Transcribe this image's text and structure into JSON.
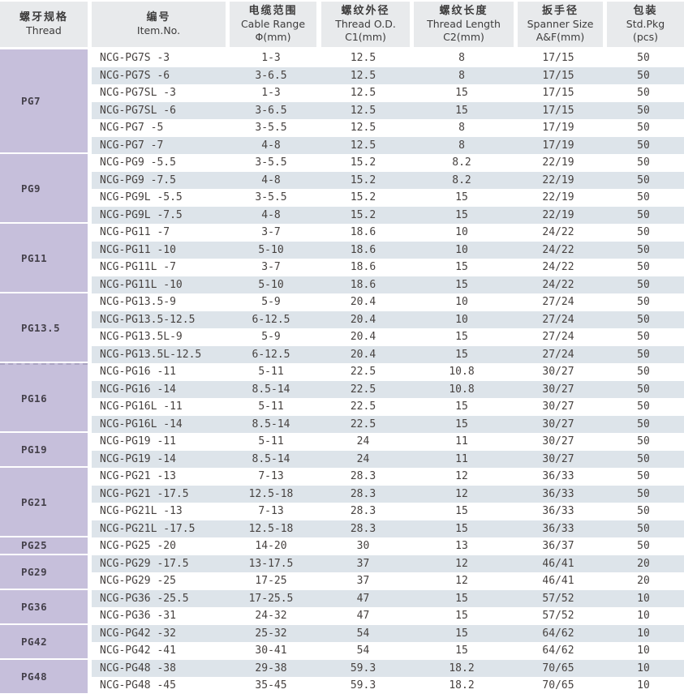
{
  "table": {
    "columns": [
      {
        "zh": "螺牙规格",
        "en": "Thread",
        "sub": ""
      },
      {
        "zh": "编号",
        "en": "Item.No.",
        "sub": ""
      },
      {
        "zh": "电缆范围",
        "en": "Cable Range",
        "sub": "Φ(mm)"
      },
      {
        "zh": "螺纹外径",
        "en": "Thread O.D.",
        "sub": "C1(mm)"
      },
      {
        "zh": "螺纹长度",
        "en": "Thread Length",
        "sub": "C2(mm)"
      },
      {
        "zh": "扳手径",
        "en": "Spanner Size",
        "sub": "A&F(mm)"
      },
      {
        "zh": "包装",
        "en": "Std.Pkg",
        "sub": "(pcs)"
      }
    ],
    "groups": [
      {
        "thread": "PG7",
        "rows": [
          [
            "NCG-PG7S -3",
            "1-3",
            "12.5",
            "8",
            "17/15",
            "50"
          ],
          [
            "NCG-PG7S -6",
            "3-6.5",
            "12.5",
            "8",
            "17/15",
            "50"
          ],
          [
            "NCG-PG7SL -3",
            "1-3",
            "12.5",
            "15",
            "17/15",
            "50"
          ],
          [
            "NCG-PG7SL -6",
            "3-6.5",
            "12.5",
            "15",
            "17/15",
            "50"
          ],
          [
            "NCG-PG7 -5",
            "3-5.5",
            "12.5",
            "8",
            "17/19",
            "50"
          ],
          [
            "NCG-PG7 -7",
            "4-8",
            "12.5",
            "8",
            "17/19",
            "50"
          ]
        ]
      },
      {
        "thread": "PG9",
        "rows": [
          [
            "NCG-PG9 -5.5",
            "3-5.5",
            "15.2",
            "8.2",
            "22/19",
            "50"
          ],
          [
            "NCG-PG9 -7.5",
            "4-8",
            "15.2",
            "8.2",
            "22/19",
            "50"
          ],
          [
            "NCG-PG9L -5.5",
            "3-5.5",
            "15.2",
            "15",
            "22/19",
            "50"
          ],
          [
            "NCG-PG9L -7.5",
            "4-8",
            "15.2",
            "15",
            "22/19",
            "50"
          ]
        ]
      },
      {
        "thread": "PG11",
        "rows": [
          [
            "NCG-PG11 -7",
            "3-7",
            "18.6",
            "10",
            "24/22",
            "50"
          ],
          [
            "NCG-PG11 -10",
            "5-10",
            "18.6",
            "10",
            "24/22",
            "50"
          ],
          [
            "NCG-PG11L -7",
            "3-7",
            "18.6",
            "15",
            "24/22",
            "50"
          ],
          [
            "NCG-PG11L -10",
            "5-10",
            "18.6",
            "15",
            "24/22",
            "50"
          ]
        ]
      },
      {
        "thread": "PG13.5",
        "rows": [
          [
            "NCG-PG13.5-9",
            "5-9",
            "20.4",
            "10",
            "27/24",
            "50"
          ],
          [
            "NCG-PG13.5-12.5",
            "6-12.5",
            "20.4",
            "10",
            "27/24",
            "50"
          ],
          [
            "NCG-PG13.5L-9",
            "5-9",
            "20.4",
            "15",
            "27/24",
            "50"
          ],
          [
            "NCG-PG13.5L-12.5",
            "6-12.5",
            "20.4",
            "15",
            "27/24",
            "50"
          ]
        ]
      },
      {
        "thread": "PG16",
        "divider_before": true,
        "rows": [
          [
            "NCG-PG16 -11",
            "5-11",
            "22.5",
            "10.8",
            "30/27",
            "50"
          ],
          [
            "NCG-PG16 -14",
            "8.5-14",
            "22.5",
            "10.8",
            "30/27",
            "50"
          ],
          [
            "NCG-PG16L -11",
            "5-11",
            "22.5",
            "15",
            "30/27",
            "50"
          ],
          [
            "NCG-PG16L -14",
            "8.5-14",
            "22.5",
            "15",
            "30/27",
            "50"
          ]
        ]
      },
      {
        "thread": "PG19",
        "rows": [
          [
            "NCG-PG19 -11",
            "5-11",
            "24",
            "11",
            "30/27",
            "50"
          ],
          [
            "NCG-PG19 -14",
            "8.5-14",
            "24",
            "11",
            "30/27",
            "50"
          ]
        ]
      },
      {
        "thread": "PG21",
        "rows": [
          [
            "NCG-PG21 -13",
            "7-13",
            "28.3",
            "12",
            "36/33",
            "50"
          ],
          [
            "NCG-PG21 -17.5",
            "12.5-18",
            "28.3",
            "12",
            "36/33",
            "50"
          ],
          [
            "NCG-PG21L -13",
            "7-13",
            "28.3",
            "15",
            "36/33",
            "50"
          ],
          [
            "NCG-PG21L -17.5",
            "12.5-18",
            "28.3",
            "15",
            "36/33",
            "50"
          ]
        ]
      },
      {
        "thread": "PG25",
        "rows": [
          [
            "NCG-PG25 -20",
            "14-20",
            "30",
            "13",
            "36/37",
            "50"
          ]
        ]
      },
      {
        "thread": "PG29",
        "rows": [
          [
            "NCG-PG29 -17.5",
            "13-17.5",
            "37",
            "12",
            "46/41",
            "20"
          ],
          [
            "NCG-PG29 -25",
            "17-25",
            "37",
            "12",
            "46/41",
            "20"
          ]
        ]
      },
      {
        "thread": "PG36",
        "rows": [
          [
            "NCG-PG36 -25.5",
            "17-25.5",
            "47",
            "15",
            "57/52",
            "10"
          ],
          [
            "NCG-PG36 -31",
            "24-32",
            "47",
            "15",
            "57/52",
            "10"
          ]
        ]
      },
      {
        "thread": "PG42",
        "rows": [
          [
            "NCG-PG42 -32",
            "25-32",
            "54",
            "15",
            "64/62",
            "10"
          ],
          [
            "NCG-PG42 -41",
            "30-41",
            "54",
            "15",
            "64/62",
            "10"
          ]
        ]
      },
      {
        "thread": "PG48",
        "rows": [
          [
            "NCG-PG48 -38",
            "29-38",
            "59.3",
            "18.2",
            "70/65",
            "10"
          ],
          [
            "NCG-PG48 -45",
            "35-45",
            "59.3",
            "18.2",
            "70/65",
            "10"
          ]
        ]
      }
    ]
  },
  "colors": {
    "header_bg": "#e8eaec",
    "thread_column_bg": "#c6bfdb",
    "row_stripe_bg": "#dde4ea",
    "text": "#474240"
  }
}
